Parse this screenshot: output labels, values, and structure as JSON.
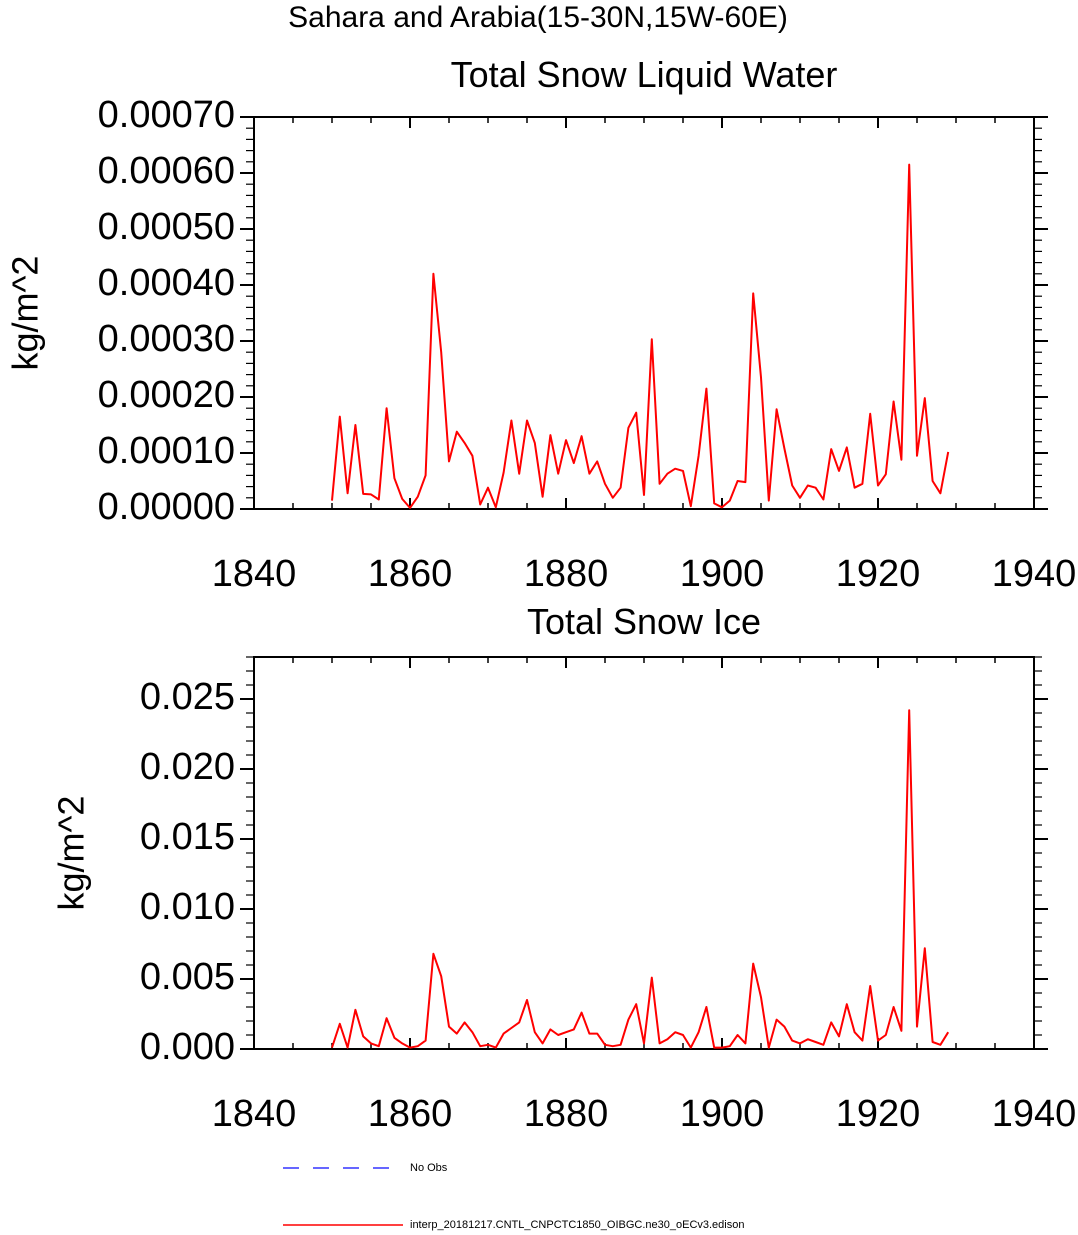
{
  "page": {
    "suptitle": "Sahara and Arabia(15-30N,15W-60E)"
  },
  "colors": {
    "series": "#ff0000",
    "obs": "#3333ff",
    "axis": "#000000"
  },
  "chart_data": [
    {
      "type": "line",
      "title": "Total Snow Liquid Water",
      "xlabel": "",
      "ylabel": "kg/m^2",
      "xlim": [
        1840,
        1940
      ],
      "ylim": [
        0,
        0.0007
      ],
      "xticks": [
        1840,
        1860,
        1880,
        1900,
        1920,
        1940
      ],
      "xtick_labels": [
        "1840",
        "1860",
        "1880",
        "1900",
        "1920",
        "1940"
      ],
      "yticks": [
        0,
        0.0001,
        0.0002,
        0.0003,
        0.0004,
        0.0005,
        0.0006,
        0.0007
      ],
      "ytick_labels": [
        "0.00000",
        "0.00010",
        "0.00020",
        "0.00030",
        "0.00040",
        "0.00050",
        "0.00060",
        "0.00070"
      ],
      "series": [
        {
          "name": "interp_20181217.CNTL_CNPCTC1850_OIBGC.ne30_oECv3.edison",
          "x_start": 1850,
          "x_step": 1,
          "values": [
            1.5e-05,
            0.000165,
            2.8e-05,
            0.00015,
            2.7e-05,
            2.6e-05,
            1.7e-05,
            0.00018,
            5.5e-05,
            1.8e-05,
            2e-06,
            2.2e-05,
            6e-05,
            0.00042,
            0.00028,
            8.5e-05,
            0.000138,
            0.000118,
            9.5e-05,
            8e-06,
            3.8e-05,
            3e-06,
            6.5e-05,
            0.000158,
            6.3e-05,
            0.000158,
            0.000118,
            2.2e-05,
            0.000132,
            6.3e-05,
            0.000123,
            8.2e-05,
            0.00013,
            6.3e-05,
            8.5e-05,
            4.5e-05,
            2e-05,
            3.8e-05,
            0.000145,
            0.000172,
            2.5e-05,
            0.000303,
            4.5e-05,
            6.3e-05,
            7.2e-05,
            6.8e-05,
            5e-06,
            9.5e-05,
            0.000215,
            1e-05,
            3e-06,
            1.5e-05,
            5e-05,
            4.8e-05,
            0.000385,
            0.000235,
            1.5e-05,
            0.000178,
            0.000108,
            4.2e-05,
            2e-05,
            4.2e-05,
            3.8e-05,
            1.7e-05,
            0.000107,
            6.8e-05,
            0.00011,
            3.8e-05,
            4.5e-05,
            0.00017,
            4.2e-05,
            6.2e-05,
            0.000192,
            8.8e-05,
            0.000615,
            9.5e-05,
            0.000198,
            5e-05,
            2.8e-05,
            0.000102
          ]
        }
      ]
    },
    {
      "type": "line",
      "title": "Total Snow Ice",
      "xlabel": "",
      "ylabel": "kg/m^2",
      "xlim": [
        1840,
        1940
      ],
      "ylim": [
        0,
        0.028
      ],
      "xticks": [
        1840,
        1860,
        1880,
        1900,
        1920,
        1940
      ],
      "xtick_labels": [
        "1840",
        "1860",
        "1880",
        "1900",
        "1920",
        "1940"
      ],
      "yticks": [
        0,
        0.005,
        0.01,
        0.015,
        0.02,
        0.025
      ],
      "ytick_labels": [
        "0.000",
        "0.005",
        "0.010",
        "0.015",
        "0.020",
        "0.025"
      ],
      "series": [
        {
          "name": "interp_20181217.CNTL_CNPCTC1850_OIBGC.ne30_oECv3.edison",
          "x_start": 1850,
          "x_step": 1,
          "values": [
            0.0001,
            0.0018,
            0.0001,
            0.0028,
            0.0009,
            0.0004,
            0.0002,
            0.0022,
            0.0008,
            0.0004,
            0.0001,
            0.0002,
            0.0006,
            0.0068,
            0.0052,
            0.0016,
            0.0011,
            0.0019,
            0.0012,
            0.0002,
            0.0003,
            0.0001,
            0.0011,
            0.0015,
            0.0019,
            0.0035,
            0.0012,
            0.0004,
            0.0014,
            0.001,
            0.0012,
            0.0014,
            0.0026,
            0.0011,
            0.0011,
            0.0003,
            0.0002,
            0.0003,
            0.0021,
            0.0032,
            0.0004,
            0.0051,
            0.0004,
            0.0007,
            0.0012,
            0.001,
            0.0001,
            0.0012,
            0.003,
            0.0001,
            0.0001,
            0.0002,
            0.001,
            0.0004,
            0.0061,
            0.0037,
            0.0001,
            0.0021,
            0.0016,
            0.0006,
            0.0004,
            0.0007,
            0.0005,
            0.0003,
            0.0019,
            0.0009,
            0.0032,
            0.0012,
            0.0006,
            0.0045,
            0.0006,
            0.001,
            0.003,
            0.0013,
            0.0242,
            0.0016,
            0.0072,
            0.0005,
            0.0003,
            0.0012
          ]
        }
      ]
    }
  ],
  "legend": {
    "items": [
      {
        "label": "No Obs",
        "style": "dashed",
        "color": "#3333ff"
      },
      {
        "label": "interp_20181217.CNTL_CNPCTC1850_OIBGC.ne30_oECv3.edison",
        "style": "solid",
        "color": "#ff0000"
      }
    ]
  }
}
